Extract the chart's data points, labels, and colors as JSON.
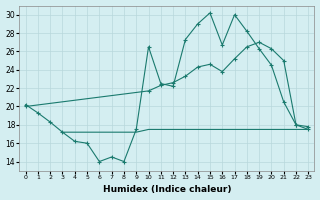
{
  "xlabel": "Humidex (Indice chaleur)",
  "bg_color": "#d4eef1",
  "line_color": "#1a7a6e",
  "grid_color": "#b8d8dc",
  "xlim": [
    -0.5,
    23.5
  ],
  "ylim": [
    13,
    31
  ],
  "yticks": [
    14,
    16,
    18,
    20,
    22,
    24,
    26,
    28,
    30
  ],
  "xticks": [
    0,
    1,
    2,
    3,
    4,
    5,
    6,
    7,
    8,
    9,
    10,
    11,
    12,
    13,
    14,
    15,
    16,
    17,
    18,
    19,
    20,
    21,
    22,
    23
  ],
  "line1_x": [
    0,
    1,
    2,
    3,
    4,
    5,
    6,
    7,
    8,
    9,
    10,
    11,
    12,
    13,
    14,
    15,
    16,
    17,
    18,
    19,
    20,
    21,
    22,
    23
  ],
  "line1_y": [
    20.2,
    19.3,
    18.3,
    17.2,
    16.2,
    16.0,
    14.0,
    14.5,
    14.0,
    17.5,
    26.5,
    22.5,
    22.2,
    27.3,
    29.0,
    30.2,
    26.7,
    30.0,
    28.2,
    26.3,
    24.5,
    20.5,
    18.0,
    17.8
  ],
  "line2_x": [
    0,
    10,
    11,
    12,
    13,
    14,
    15,
    16,
    17,
    18,
    19,
    20,
    21,
    22,
    23
  ],
  "line2_y": [
    20.0,
    21.7,
    22.3,
    22.6,
    23.3,
    24.3,
    24.6,
    23.8,
    25.2,
    26.5,
    27.0,
    26.3,
    25.0,
    18.0,
    17.5
  ],
  "line3_x": [
    3,
    9,
    10,
    11,
    12,
    13,
    14,
    15,
    16,
    17,
    18,
    19,
    20,
    21,
    22,
    23
  ],
  "line3_y": [
    17.2,
    17.2,
    17.5,
    17.5,
    17.5,
    17.5,
    17.5,
    17.5,
    17.5,
    17.5,
    17.5,
    17.5,
    17.5,
    17.5,
    17.5,
    17.5
  ]
}
